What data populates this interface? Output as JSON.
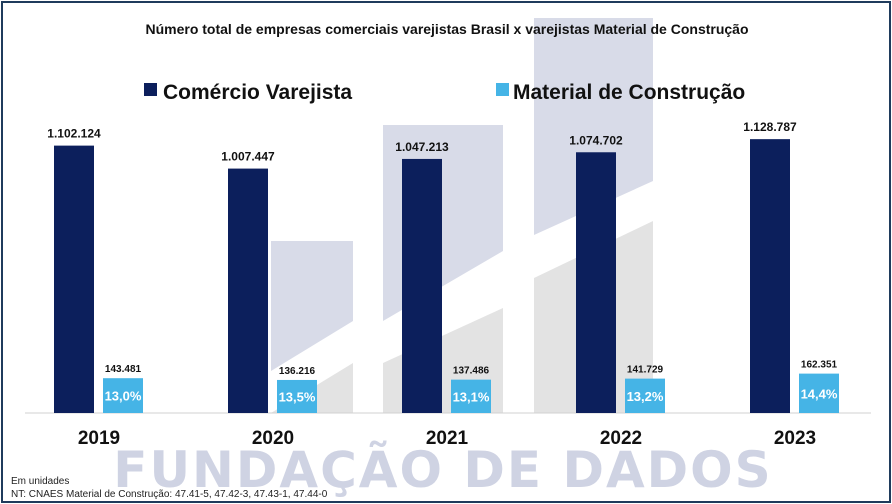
{
  "chart_data": {
    "type": "bar",
    "title": "Número total de empresas comerciais varejistas Brasil x varejistas Material de Construção",
    "categories": [
      "2019",
      "2020",
      "2021",
      "2022",
      "2023"
    ],
    "series": [
      {
        "name": "Comércio Varejista",
        "color": "#0c1f5c",
        "values": [
          1102124,
          1007447,
          1047213,
          1074702,
          1128787
        ],
        "labels": [
          "1.102.124",
          "1.007.447",
          "1.047.213",
          "1.074.702",
          "1.128.787"
        ]
      },
      {
        "name": "Material de Construção",
        "color": "#45b4e6",
        "values": [
          143481,
          136216,
          137486,
          141729,
          162351
        ],
        "labels": [
          "143.481",
          "136.216",
          "137.486",
          "141.729",
          "162.351"
        ],
        "share_labels": [
          "13,0%",
          "13,5%",
          "13,1%",
          "13,2%",
          "14,4%"
        ]
      }
    ],
    "ylim": [
      0,
      1150000
    ],
    "legend_position": "top",
    "grid": false
  },
  "watermark": {
    "text": "FUNDAÇÃO DE DADOS"
  },
  "footnotes": {
    "units": "Em unidades",
    "note": "NT: CNAES Material de Construção: 47.41-5, 47.42-3, 47.43-1, 47.44-0"
  }
}
